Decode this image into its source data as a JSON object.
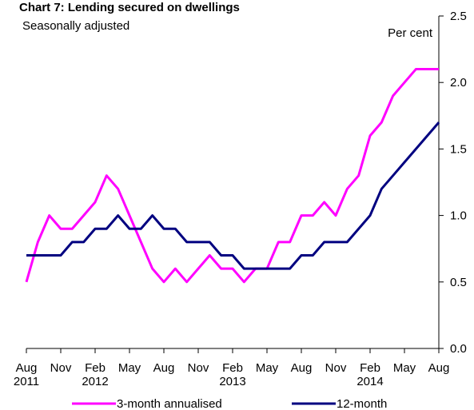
{
  "chart_data": {
    "type": "line",
    "title": "Chart 7: Lending secured on dwellings",
    "subtitle": "Seasonally adjusted",
    "y_label": "Per cent",
    "x": [
      "Aug 2011",
      null,
      null,
      "Nov",
      null,
      null,
      "Feb 2012",
      null,
      null,
      "May",
      null,
      null,
      "Aug",
      null,
      null,
      "Nov",
      null,
      null,
      "Feb 2013",
      null,
      null,
      "May",
      null,
      null,
      "Aug",
      null,
      null,
      "Nov",
      null,
      null,
      "Feb 2014",
      null,
      null,
      "May",
      null,
      null,
      "Aug"
    ],
    "series": [
      {
        "name": "3-month annualised",
        "color": "#ff00ff",
        "values": [
          0.5,
          0.8,
          1.0,
          0.9,
          0.9,
          1.0,
          1.1,
          1.3,
          1.2,
          1.0,
          0.8,
          0.6,
          0.5,
          0.6,
          0.5,
          0.6,
          0.7,
          0.6,
          0.6,
          0.5,
          0.6,
          0.6,
          0.8,
          0.8,
          1.0,
          1.0,
          1.1,
          1.0,
          1.2,
          1.3,
          1.6,
          1.7,
          1.9,
          2.0,
          2.1,
          2.1,
          2.1
        ]
      },
      {
        "name": "12-month",
        "color": "#000080",
        "values": [
          0.7,
          0.7,
          0.7,
          0.7,
          0.8,
          0.8,
          0.9,
          0.9,
          1.0,
          0.9,
          0.9,
          1.0,
          0.9,
          0.9,
          0.8,
          0.8,
          0.8,
          0.7,
          0.7,
          0.6,
          0.6,
          0.6,
          0.6,
          0.6,
          0.7,
          0.7,
          0.8,
          0.8,
          0.8,
          0.9,
          1.0,
          1.2,
          1.3,
          1.4,
          1.5,
          1.6,
          1.7
        ]
      }
    ],
    "ylim": [
      0,
      2.5
    ],
    "yticks": [
      {
        "value": 0,
        "label": "0.0"
      },
      0.5,
      {
        "value": 1,
        "label": "1.0"
      },
      1.5,
      {
        "value": 2,
        "label": "2.0"
      },
      2.5
    ],
    "y_axis_side": "right",
    "grid": false
  }
}
